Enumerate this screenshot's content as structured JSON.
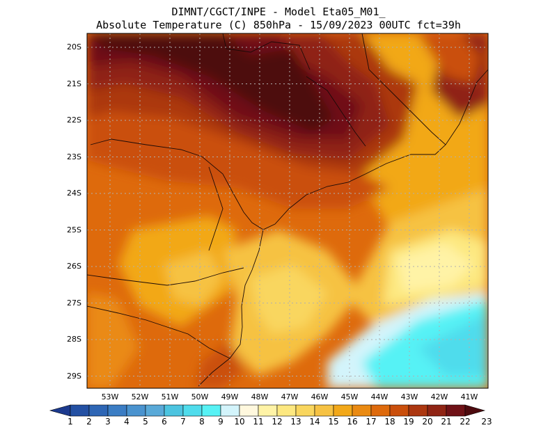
{
  "header": {
    "line1": "DIMNT/CGCT/INPE -  Model Eta05_M01_",
    "line2": "Absolute Temperature (C) 850hPa -  15/09/2023 00UTC fct=39h"
  },
  "axes": {
    "lat_labels": [
      "20S",
      "21S",
      "22S",
      "23S",
      "24S",
      "25S",
      "26S",
      "27S",
      "28S",
      "29S"
    ],
    "lon_labels": [
      "53W",
      "52W",
      "51W",
      "50W",
      "49W",
      "48W",
      "47W",
      "46W",
      "45W",
      "44W",
      "43W",
      "42W",
      "41W"
    ]
  },
  "colorbar": {
    "labels": [
      "1",
      "2",
      "3",
      "4",
      "5",
      "6",
      "7",
      "8",
      "9",
      "10",
      "11",
      "12",
      "13",
      "14",
      "15",
      "16",
      "17",
      "18",
      "19",
      "20",
      "21",
      "22",
      "23"
    ],
    "colors": [
      "#1c3a8e",
      "#2350a3",
      "#2e66b5",
      "#3b7dc4",
      "#4a93cf",
      "#59a9d8",
      "#4cc4e0",
      "#4fdcec",
      "#57f2f5",
      "#d3f4fb",
      "#fff8de",
      "#fff3a6",
      "#fde880",
      "#f9d65e",
      "#f6c243",
      "#f2a819",
      "#ea8a12",
      "#de6a0c",
      "#ca4f0c",
      "#ac3710",
      "#8f2414",
      "#6f1116",
      "#4d0a0e"
    ]
  }
}
